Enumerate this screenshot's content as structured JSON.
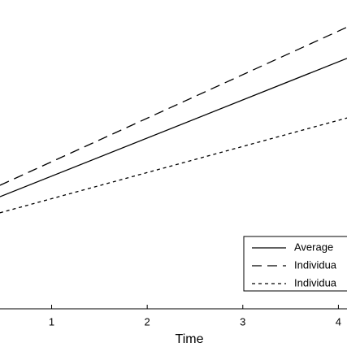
{
  "chart_data": {
    "type": "line",
    "x_label": "Time",
    "x": [
      0.46,
      4.09
    ],
    "series": [
      {
        "name": "Average",
        "color": "#000000",
        "linestyle": "solid",
        "values": [
          0.363,
          0.811
        ]
      },
      {
        "name": "Individua",
        "color": "#000000",
        "linestyle": "long-dash",
        "values": [
          0.4,
          0.912
        ]
      },
      {
        "name": "Individua",
        "color": "#000000",
        "linestyle": "short-dash",
        "values": [
          0.311,
          0.618
        ]
      }
    ],
    "xlim": [
      0.46,
      4.09
    ],
    "xticks": [
      1,
      2,
      3,
      4
    ],
    "ylim": [
      0,
      1
    ],
    "grid": false,
    "legend": "lower right"
  }
}
